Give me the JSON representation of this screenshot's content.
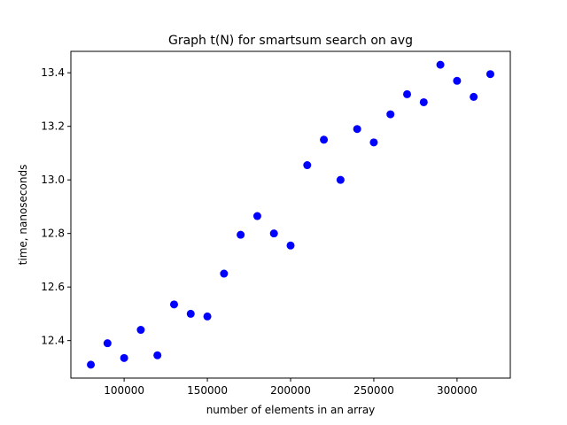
{
  "chart_data": {
    "type": "scatter",
    "title": "Graph t(N) for smartsum search on avg",
    "xlabel": "number of elements in an array",
    "ylabel": "time, nanoseconds",
    "xlim": [
      68000,
      332000
    ],
    "ylim": [
      12.26,
      13.48
    ],
    "xticks": [
      100000,
      150000,
      200000,
      250000,
      300000
    ],
    "xtick_labels": [
      "100000",
      "150000",
      "200000",
      "250000",
      "300000"
    ],
    "yticks": [
      12.4,
      12.6,
      12.8,
      13.0,
      13.2,
      13.4
    ],
    "ytick_labels": [
      "12.4",
      "12.6",
      "12.8",
      "13.0",
      "13.2",
      "13.4"
    ],
    "grid": false,
    "marker_color": "#0000ff",
    "x": [
      80000,
      90000,
      100000,
      110000,
      120000,
      130000,
      140000,
      150000,
      160000,
      170000,
      180000,
      190000,
      200000,
      210000,
      220000,
      230000,
      240000,
      250000,
      260000,
      270000,
      280000,
      290000,
      300000,
      310000,
      320000
    ],
    "y": [
      12.31,
      12.39,
      12.335,
      12.44,
      12.345,
      12.535,
      12.5,
      12.49,
      12.65,
      12.795,
      12.865,
      12.8,
      12.755,
      13.055,
      13.15,
      13.0,
      13.19,
      13.14,
      13.245,
      13.32,
      13.29,
      13.43,
      13.37,
      13.31,
      13.395
    ]
  }
}
